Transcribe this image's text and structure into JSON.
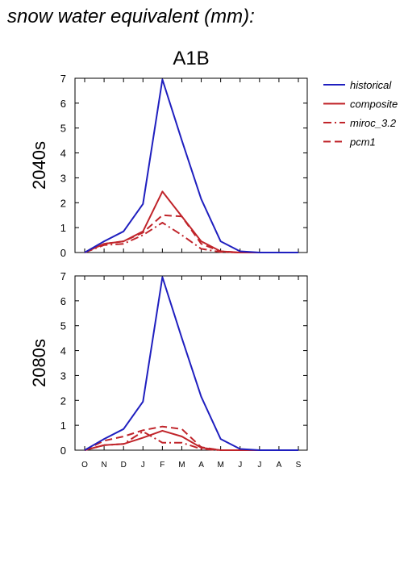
{
  "main_title": "snow water equivalent (mm):",
  "scenario_title": "A1B",
  "legend": [
    {
      "label": "historical",
      "color": "#1f1fbf",
      "dash": "solid"
    },
    {
      "label": "composite",
      "color": "#c0242a",
      "dash": "solid"
    },
    {
      "label": "miroc_3.2",
      "color": "#c0242a",
      "dash": "dashdot"
    },
    {
      "label": "pcm1",
      "color": "#c0242a",
      "dash": "dashed"
    }
  ],
  "chart_data": [
    {
      "type": "line",
      "panel_label": "2040s",
      "x": [
        "O",
        "N",
        "D",
        "J",
        "F",
        "M",
        "A",
        "M",
        "J",
        "J",
        "A",
        "S"
      ],
      "ylim": [
        0,
        7
      ],
      "yticks": [
        0,
        1,
        2,
        3,
        4,
        5,
        6,
        7
      ],
      "show_xtick_labels": false,
      "series": [
        {
          "name": "historical",
          "values": [
            0,
            0.45,
            0.85,
            1.95,
            6.95,
            4.5,
            2.15,
            0.45,
            0.05,
            0,
            0,
            0
          ]
        },
        {
          "name": "composite",
          "values": [
            0,
            0.35,
            0.45,
            0.85,
            2.45,
            1.45,
            0.45,
            0.05,
            0,
            0,
            0,
            0
          ]
        },
        {
          "name": "miroc_3.2",
          "values": [
            0,
            0.3,
            0.35,
            0.7,
            1.2,
            0.7,
            0.15,
            0.02,
            0,
            0,
            0,
            0
          ]
        },
        {
          "name": "pcm1",
          "values": [
            0,
            0.35,
            0.45,
            0.8,
            1.5,
            1.45,
            0.35,
            0.05,
            0,
            0,
            0,
            0
          ]
        }
      ]
    },
    {
      "type": "line",
      "panel_label": "2080s",
      "x": [
        "O",
        "N",
        "D",
        "J",
        "F",
        "M",
        "A",
        "M",
        "J",
        "J",
        "A",
        "S"
      ],
      "ylim": [
        0,
        7
      ],
      "yticks": [
        0,
        1,
        2,
        3,
        4,
        5,
        6,
        7
      ],
      "show_xtick_labels": true,
      "series": [
        {
          "name": "historical",
          "values": [
            0,
            0.45,
            0.85,
            1.95,
            6.95,
            4.5,
            2.15,
            0.45,
            0.05,
            0,
            0,
            0
          ]
        },
        {
          "name": "composite",
          "values": [
            0,
            0.2,
            0.25,
            0.5,
            0.78,
            0.55,
            0.1,
            0,
            0,
            0,
            0,
            0
          ]
        },
        {
          "name": "miroc_3.2",
          "values": [
            0,
            0.2,
            0.25,
            0.75,
            0.3,
            0.3,
            0.05,
            0,
            0,
            0,
            0,
            0
          ]
        },
        {
          "name": "pcm1",
          "values": [
            0,
            0.38,
            0.55,
            0.8,
            0.95,
            0.85,
            0.12,
            0,
            0,
            0,
            0,
            0
          ]
        }
      ]
    }
  ]
}
